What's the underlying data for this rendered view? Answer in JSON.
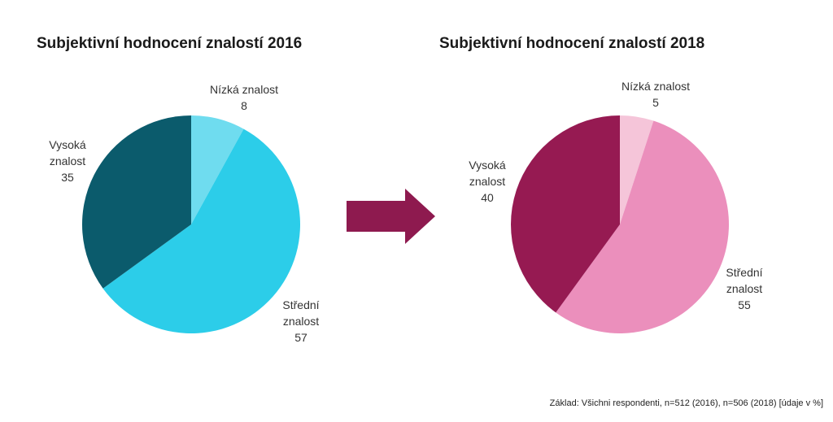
{
  "footnote": "Základ: Všichni respondenti, n=512 (2016), n=506 (2018) [údaje v %]",
  "chart_data": [
    {
      "type": "pie",
      "title": "Subjektivní hodnocení znalostí 2016",
      "slices": [
        {
          "label_lines": [
            "Nízká znalost"
          ],
          "value": 8,
          "color": "#6fdcef"
        },
        {
          "label_lines": [
            "Střední",
            "znalost"
          ],
          "value": 57,
          "color": "#2ccde9"
        },
        {
          "label_lines": [
            "Vysoká",
            "znalost"
          ],
          "value": 35,
          "color": "#0b5b6c"
        }
      ]
    },
    {
      "type": "pie",
      "title": "Subjektivní hodnocení znalostí 2018",
      "slices": [
        {
          "label_lines": [
            "Nízká znalost"
          ],
          "value": 5,
          "color": "#f5c5d9"
        },
        {
          "label_lines": [
            "Střední",
            "znalost"
          ],
          "value": 55,
          "color": "#eb8fbc"
        },
        {
          "label_lines": [
            "Vysoká",
            "znalost"
          ],
          "value": 40,
          "color": "#961a52"
        }
      ]
    }
  ],
  "arrow": {
    "color": "#8e1a4f"
  }
}
